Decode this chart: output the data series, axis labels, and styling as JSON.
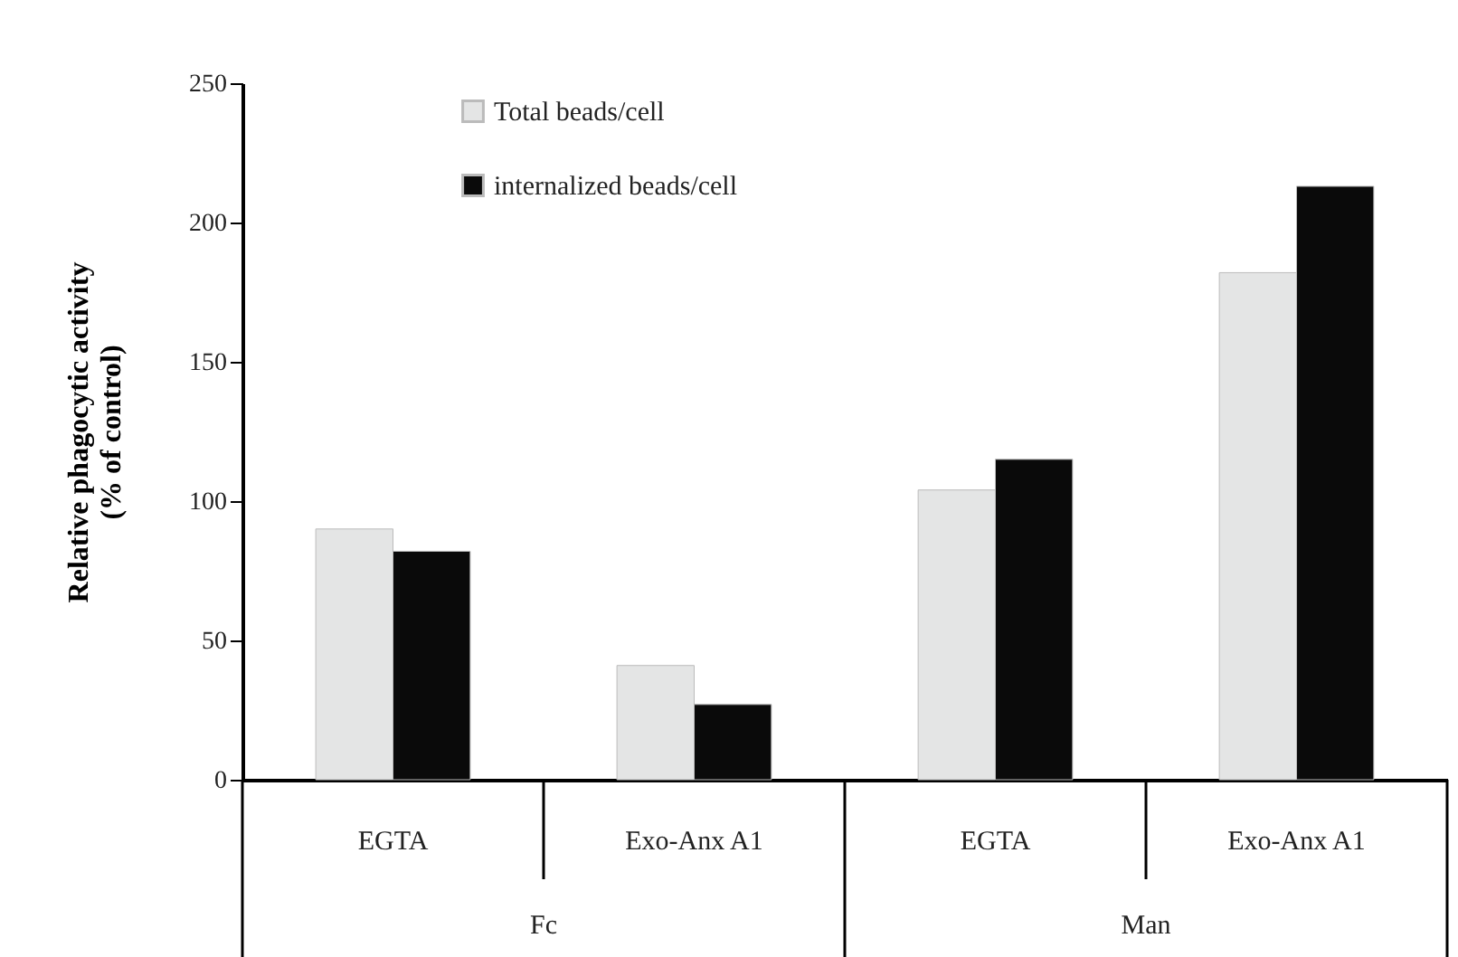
{
  "chart_data": {
    "type": "bar",
    "ylabel": "Relative phagocytic activity\n(% of control)",
    "categories": [
      "EGTA",
      "Exo-Anx A1",
      "EGTA",
      "Exo-Anx A1"
    ],
    "series": [
      {
        "name": "Total beads/cell",
        "color": "#e4e5e5",
        "values": [
          90,
          41,
          104,
          182
        ]
      },
      {
        "name": "internalized beads/cell",
        "color": "#0a0a0a",
        "values": [
          82,
          27,
          115,
          213
        ]
      }
    ],
    "annotations": [
      "Fc",
      "Man"
    ],
    "ylim": [
      0,
      250
    ],
    "yticks": [
      0,
      50,
      100,
      150,
      200,
      250
    ],
    "grid": false,
    "legend": "top left"
  }
}
